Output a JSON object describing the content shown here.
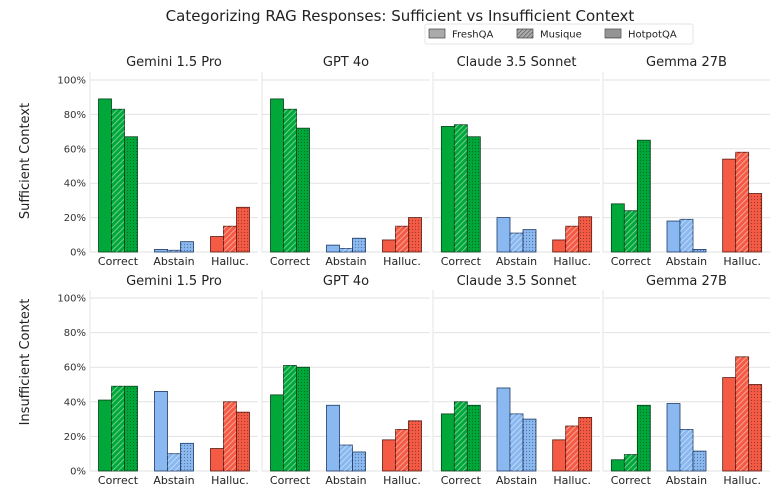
{
  "chart_data": {
    "type": "bar",
    "title": "Categorizing RAG Responses: Sufficient vs Insufficient Context",
    "legend": {
      "placement": "top-right",
      "entries": [
        {
          "name": "FreshQA",
          "pattern": "solid"
        },
        {
          "name": "Musique",
          "pattern": "diagonal-hatch"
        },
        {
          "name": "HotpotQA",
          "pattern": "dots"
        }
      ]
    },
    "categories": [
      "Correct",
      "Abstain",
      "Halluc."
    ],
    "category_colors": {
      "Correct": "#00a83a",
      "Abstain": "#8ab8f0",
      "Halluc.": "#f45a44"
    },
    "datasets": [
      "FreshQA",
      "Musique",
      "HotpotQA"
    ],
    "ylim": [
      0,
      100
    ],
    "yticks": [
      "0%",
      "20%",
      "40%",
      "60%",
      "80%",
      "100%"
    ],
    "ytick_values": [
      0,
      20,
      40,
      60,
      80,
      100
    ],
    "grid": true,
    "rows": [
      {
        "label": "Sufficient Context",
        "panels": [
          {
            "model": "Gemini 1.5 Pro",
            "values": {
              "Correct": [
                89,
                83,
                67
              ],
              "Abstain": [
                1.5,
                1,
                6
              ],
              "Halluc.": [
                9,
                15,
                26
              ]
            }
          },
          {
            "model": "GPT 4o",
            "values": {
              "Correct": [
                89,
                83,
                72
              ],
              "Abstain": [
                4,
                2,
                8
              ],
              "Halluc.": [
                7,
                15,
                20
              ]
            }
          },
          {
            "model": "Claude 3.5 Sonnet",
            "values": {
              "Correct": [
                73,
                74,
                67
              ],
              "Abstain": [
                20,
                11,
                13
              ],
              "Halluc.": [
                7,
                15,
                20.5
              ]
            }
          },
          {
            "model": "Gemma 27B",
            "values": {
              "Correct": [
                28,
                24,
                65
              ],
              "Abstain": [
                18,
                19,
                1.5
              ],
              "Halluc.": [
                54,
                58,
                34
              ]
            }
          }
        ]
      },
      {
        "label": "Insufficient Context",
        "panels": [
          {
            "model": "Gemini 1.5 Pro",
            "values": {
              "Correct": [
                41,
                49,
                49
              ],
              "Abstain": [
                46,
                10,
                16
              ],
              "Halluc.": [
                13,
                40,
                34
              ]
            }
          },
          {
            "model": "GPT 4o",
            "values": {
              "Correct": [
                44,
                61,
                60
              ],
              "Abstain": [
                38,
                15,
                11
              ],
              "Halluc.": [
                18,
                24,
                29
              ]
            }
          },
          {
            "model": "Claude 3.5 Sonnet",
            "values": {
              "Correct": [
                33,
                40,
                38
              ],
              "Abstain": [
                48,
                33,
                30
              ],
              "Halluc.": [
                18,
                26,
                31
              ]
            }
          },
          {
            "model": "Gemma 27B",
            "values": {
              "Correct": [
                6.5,
                9.5,
                38
              ],
              "Abstain": [
                39,
                24,
                11.5
              ],
              "Halluc.": [
                54,
                66,
                50
              ]
            }
          }
        ]
      }
    ]
  }
}
